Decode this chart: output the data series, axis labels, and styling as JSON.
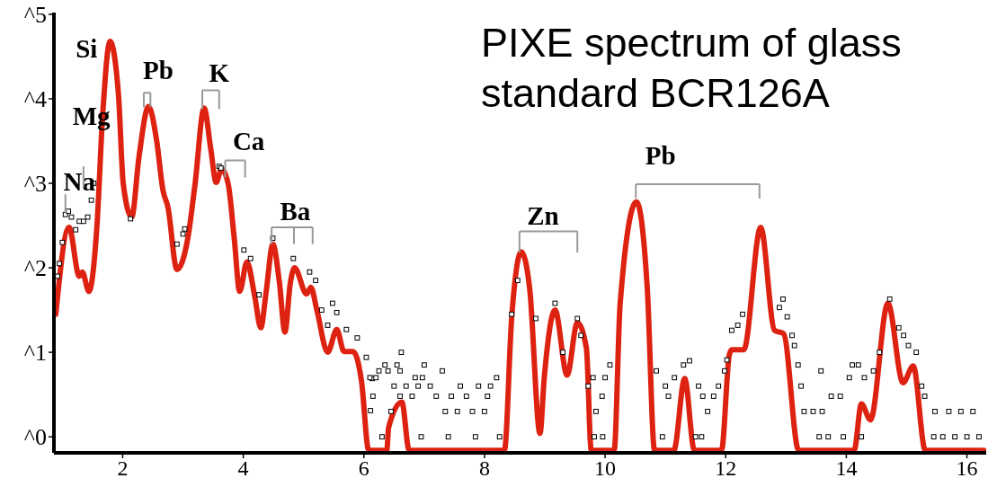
{
  "chart_data": {
    "type": "line",
    "title": "PIXE spectrum of glass standard BCR126A",
    "xlim": [
      0.86,
      16.32
    ],
    "xticks": [
      2,
      4,
      6,
      8,
      10,
      12,
      14,
      16
    ],
    "ylim": [
      -0.19,
      5.02
    ],
    "yticks": [
      {
        "value": 0,
        "label": "^0"
      },
      {
        "value": 1,
        "label": "^1"
      },
      {
        "value": 2,
        "label": "^2"
      },
      {
        "value": 3,
        "label": "^3"
      },
      {
        "value": 4,
        "label": "^4"
      },
      {
        "value": 5,
        "label": "^5"
      }
    ],
    "series": [
      {
        "type": "scatter",
        "color": "#000000",
        "marker": "square",
        "x": [
          0.92,
          0.95,
          1.0,
          1.05,
          1.1,
          1.15,
          1.22,
          1.28,
          1.35,
          1.42,
          1.48,
          1.52,
          2.13,
          2.9,
          3.03,
          3.0,
          3.6,
          3.63,
          4.01,
          4.12,
          4.26,
          4.49,
          4.83,
          5.1,
          5.2,
          5.3,
          5.4,
          5.48,
          5.55,
          5.71,
          5.89,
          6.04,
          6.14,
          6.11,
          6.35,
          6.55,
          7.0,
          6.25,
          6.4,
          6.6,
          7.3,
          6.1,
          6.2,
          6.85,
          6.97,
          8.2,
          6.5,
          6.7,
          6.9,
          7.1,
          7.6,
          7.9,
          8.1,
          6.15,
          6.6,
          6.8,
          7.2,
          7.45,
          7.7,
          8.05,
          6.45,
          7.35,
          7.55,
          7.8,
          8.0,
          6.3,
          6.95,
          7.4,
          7.85,
          8.25,
          6.62,
          8.45,
          8.55,
          8.85,
          9.17,
          9.3,
          9.54,
          9.6,
          9.72,
          9.8,
          9.95,
          9.85,
          10.0,
          10.08,
          9.82,
          9.96,
          10.85,
          11.0,
          11.05,
          11.15,
          11.3,
          11.4,
          11.55,
          11.62,
          11.7,
          11.8,
          11.88,
          11.5,
          11.6,
          10.95,
          11.98,
          12.02,
          12.1,
          12.2,
          12.28,
          12.89,
          12.95,
          13.02,
          13.1,
          13.14,
          13.2,
          13.25,
          13.3,
          13.45,
          13.6,
          13.75,
          13.9,
          13.55,
          13.7,
          14.05,
          13.58,
          14.1,
          13.95,
          14.2,
          14.3,
          14.45,
          14.55,
          14.72,
          14.87,
          14.95,
          15.03,
          15.16,
          15.25,
          15.3,
          14.25,
          15.45,
          15.6,
          15.8,
          16.0,
          16.2,
          15.47,
          15.7,
          15.9,
          16.1
        ],
        "values": [
          1.9,
          2.05,
          2.3,
          2.63,
          2.67,
          2.6,
          2.45,
          2.55,
          2.55,
          2.6,
          2.8,
          3.0,
          2.58,
          2.28,
          2.46,
          2.4,
          3.2,
          3.18,
          2.21,
          2.11,
          1.68,
          2.35,
          2.11,
          1.95,
          1.85,
          1.5,
          1.32,
          1.58,
          1.47,
          1.27,
          1.17,
          0.94,
          0.69,
          0.31,
          0.85,
          0.85,
          0.85,
          0.78,
          0.78,
          0.78,
          0.78,
          0.7,
          0.7,
          0.7,
          0.7,
          0.7,
          0.6,
          0.6,
          0.6,
          0.6,
          0.6,
          0.6,
          0.6,
          0.48,
          0.48,
          0.48,
          0.48,
          0.48,
          0.48,
          0.48,
          0.3,
          0.3,
          0.3,
          0.3,
          0.3,
          0,
          0,
          0,
          0,
          0,
          1.0,
          1.45,
          1.85,
          1.4,
          1.58,
          1.0,
          1.4,
          1.2,
          0.6,
          0.7,
          0.48,
          0.3,
          0.7,
          0.85,
          0,
          0,
          0.78,
          0.6,
          0.48,
          0.7,
          0.85,
          0.9,
          0.6,
          0.48,
          0.3,
          0.48,
          0.6,
          0,
          0,
          0,
          0.78,
          0.91,
          1.26,
          1.32,
          1.45,
          1.53,
          1.63,
          1.42,
          1.2,
          1.08,
          0.85,
          0.6,
          0.3,
          0.3,
          0.3,
          0.48,
          0.48,
          0,
          0,
          0.7,
          0.78,
          0.85,
          0,
          0.85,
          0.7,
          0.78,
          1.0,
          1.63,
          1.29,
          1.2,
          1.08,
          1.0,
          0.6,
          0.48,
          0,
          0,
          0,
          0,
          0,
          0,
          0.3,
          0.3,
          0.3,
          0.3
        ]
      },
      {
        "color": "#dd2211",
        "marker": "none",
        "x": [
          0.89,
          1.11,
          1.28,
          1.33,
          1.44,
          1.57,
          1.67,
          1.79,
          1.93,
          2.01,
          2.15,
          2.27,
          2.43,
          2.56,
          2.67,
          2.75,
          2.9,
          3.08,
          3.2,
          3.35,
          3.46,
          3.55,
          3.64,
          3.75,
          3.85,
          3.94,
          4.06,
          4.19,
          4.29,
          4.38,
          4.49,
          4.6,
          4.69,
          4.78,
          4.85,
          5.05,
          5.12,
          5.22,
          5.4,
          5.55,
          5.67,
          5.82,
          5.96,
          6.08,
          6.38,
          6.41,
          6.63,
          6.75,
          8.33,
          8.45,
          8.61,
          8.75,
          8.92,
          8.99,
          9.17,
          9.37,
          9.54,
          9.69,
          9.77,
          10.15,
          10.25,
          10.52,
          10.7,
          10.82,
          11.14,
          11.32,
          11.48,
          11.93,
          12.06,
          12.1,
          12.3,
          12.58,
          12.81,
          12.96,
          13.21,
          14.13,
          14.25,
          14.4,
          14.69,
          14.94,
          15.11,
          15.31,
          16.28
        ],
        "values": [
          1.45,
          2.48,
          1.9,
          1.95,
          1.72,
          2.46,
          3.83,
          4.68,
          4.05,
          2.99,
          2.6,
          3.31,
          3.91,
          3.52,
          2.91,
          2.72,
          1.98,
          2.35,
          2.99,
          3.89,
          3.41,
          3.01,
          3.17,
          2.99,
          2.35,
          1.72,
          2.07,
          1.66,
          1.29,
          1.72,
          2.28,
          1.82,
          1.24,
          1.82,
          2.0,
          1.69,
          1.77,
          1.5,
          1.0,
          1.27,
          1.01,
          1.01,
          0.66,
          -0.16,
          -0.16,
          0.11,
          0.41,
          -0.16,
          -0.16,
          1.4,
          2.19,
          1.75,
          0.04,
          0.69,
          1.5,
          0.73,
          1.35,
          1.05,
          -0.16,
          -0.16,
          1.58,
          2.78,
          1.75,
          -0.16,
          -0.16,
          0.69,
          -0.16,
          -0.16,
          0.97,
          1.03,
          1.03,
          2.48,
          1.26,
          1.22,
          -0.16,
          -0.16,
          0.39,
          0.2,
          1.58,
          0.64,
          0.84,
          -0.16,
          -0.16
        ]
      }
    ],
    "annotations": [
      "Na",
      "Mg",
      "Si",
      "Pb",
      "K",
      "Ca",
      "Ba",
      "Zn",
      "Pb"
    ]
  }
}
